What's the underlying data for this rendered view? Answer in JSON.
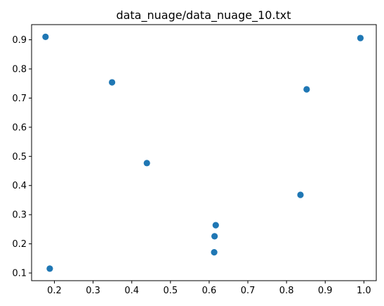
{
  "chart_data": {
    "type": "scatter",
    "title": "data_nuage/data_nuage_10.txt",
    "xlabel": "",
    "ylabel": "",
    "xlim": [
      0.141,
      1.032
    ],
    "ylim": [
      0.0736,
      0.952
    ],
    "xticks": [
      0.2,
      0.3,
      0.4,
      0.5,
      0.6,
      0.7,
      0.8,
      0.9,
      1.0
    ],
    "xtick_labels": [
      "0.2",
      "0.3",
      "0.4",
      "0.5",
      "0.6",
      "0.7",
      "0.8",
      "0.9",
      "1.0"
    ],
    "yticks": [
      0.1,
      0.2,
      0.3,
      0.4,
      0.5,
      0.6,
      0.7,
      0.8,
      0.9
    ],
    "ytick_labels": [
      "0.1",
      "0.2",
      "0.3",
      "0.4",
      "0.5",
      "0.6",
      "0.7",
      "0.8",
      "0.9"
    ],
    "grid": false,
    "marker_color": "#1f77b4",
    "points": [
      {
        "x": 0.177,
        "y": 0.91
      },
      {
        "x": 0.188,
        "y": 0.115
      },
      {
        "x": 0.349,
        "y": 0.754
      },
      {
        "x": 0.439,
        "y": 0.477
      },
      {
        "x": 0.613,
        "y": 0.171
      },
      {
        "x": 0.614,
        "y": 0.226
      },
      {
        "x": 0.617,
        "y": 0.264
      },
      {
        "x": 0.836,
        "y": 0.368
      },
      {
        "x": 0.852,
        "y": 0.73
      },
      {
        "x": 0.991,
        "y": 0.906
      }
    ]
  }
}
